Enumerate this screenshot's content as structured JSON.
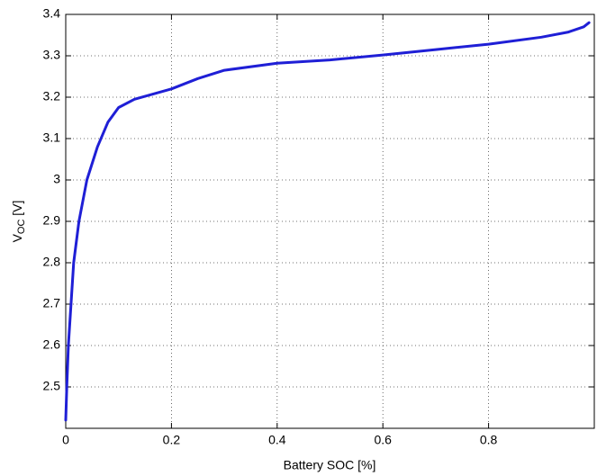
{
  "chart_data": {
    "type": "line",
    "x_label": "Battery SOC [%]",
    "y_label": {
      "main": "V",
      "sub": "OC",
      "unit": " [V]"
    },
    "x": [
      0,
      0.002,
      0.005,
      0.01,
      0.015,
      0.025,
      0.04,
      0.06,
      0.08,
      0.1,
      0.13,
      0.2,
      0.25,
      0.3,
      0.4,
      0.5,
      0.6,
      0.7,
      0.8,
      0.9,
      0.95,
      0.98,
      0.99
    ],
    "series": [
      {
        "color": "#1f1fd6",
        "values": [
          2.42,
          2.5,
          2.6,
          2.7,
          2.8,
          2.9,
          3.0,
          3.08,
          3.14,
          3.175,
          3.195,
          3.22,
          3.245,
          3.265,
          3.282,
          3.29,
          3.302,
          3.315,
          3.328,
          3.345,
          3.357,
          3.37,
          3.38
        ]
      }
    ],
    "xlim": [
      0,
      1
    ],
    "xticks": [
      0,
      0.2,
      0.4,
      0.6,
      0.8
    ],
    "ylim": [
      2.4,
      3.4
    ],
    "yticks": [
      2.5,
      2.6,
      2.7,
      2.8,
      2.9,
      3,
      3.1,
      3.2,
      3.3,
      3.4
    ],
    "grid": true
  }
}
